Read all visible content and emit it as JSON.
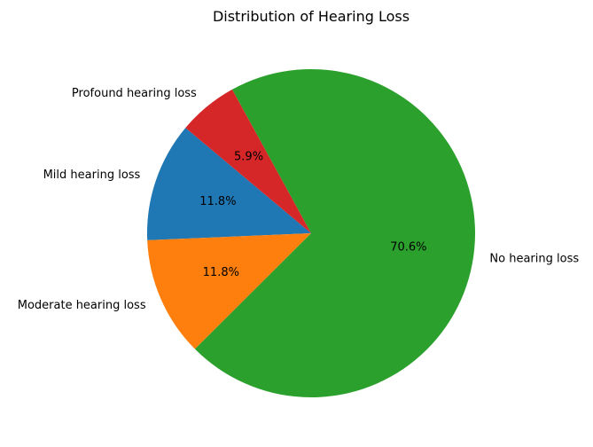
{
  "chart_data": {
    "type": "pie",
    "title": "Distribution of Hearing Loss",
    "slices": [
      {
        "label": "Mild hearing loss",
        "value": 11.8,
        "pct_label": "11.8%",
        "color": "#1f77b4"
      },
      {
        "label": "Moderate hearing loss",
        "value": 11.8,
        "pct_label": "11.8%",
        "color": "#ff7f0e"
      },
      {
        "label": "No hearing loss",
        "value": 70.6,
        "pct_label": "70.6%",
        "color": "#2ca02c"
      },
      {
        "label": "Profound hearing loss",
        "value": 5.9,
        "pct_label": "5.9%",
        "color": "#d62728"
      }
    ],
    "start_angle_deg": 140,
    "direction": "counterclockwise"
  }
}
